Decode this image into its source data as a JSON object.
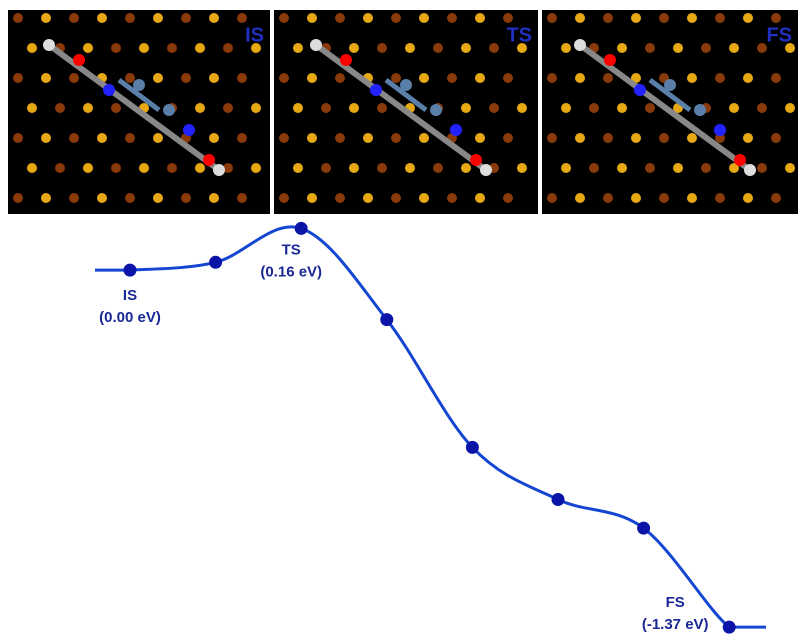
{
  "chart_data": {
    "type": "line",
    "categories": [
      "IS",
      null,
      "TS",
      null,
      null,
      null,
      null,
      "FS"
    ],
    "values": [
      0.0,
      0.03,
      0.16,
      -0.19,
      -0.68,
      -0.88,
      -0.99,
      -1.37
    ],
    "value_labels": [
      "(0.00 eV)",
      null,
      "(0.16 eV)",
      null,
      null,
      null,
      null,
      "(-1.37 eV)"
    ],
    "color": "#1446d2",
    "marker_color": "#0a14a6",
    "ylim": [
      -1.4,
      0.2
    ]
  }
}
